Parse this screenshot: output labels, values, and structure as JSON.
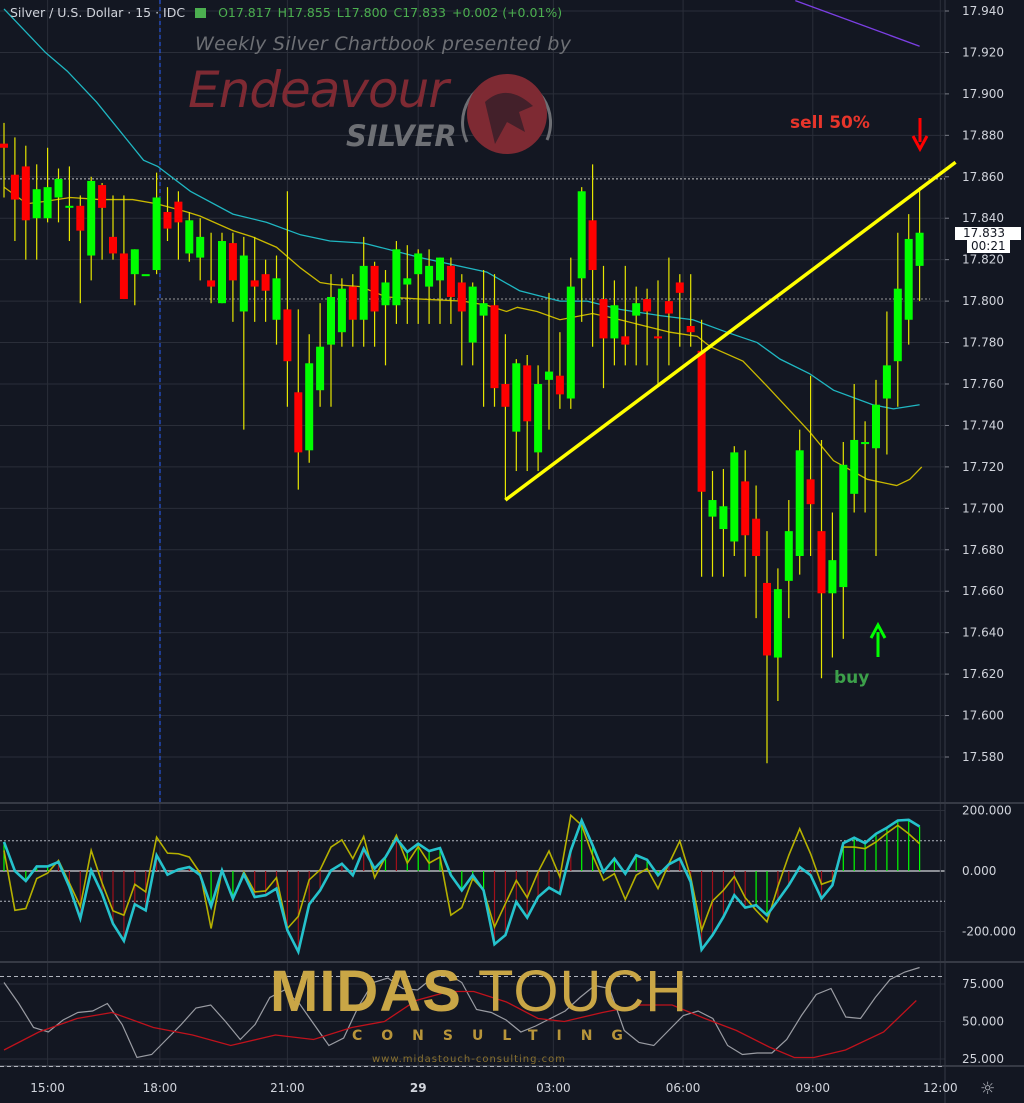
{
  "legend": {
    "symbol": "Silver / U.S. Dollar · 15 · IDC",
    "open": "O17.817",
    "high": "H17.855",
    "low": "L17.800",
    "close": "C17.833",
    "change": "+0.002 (+0.01%)"
  },
  "watermarks": {
    "chartbook": "Weekly Silver Chartbook presented by",
    "brand": "Endeavour",
    "brand_sub": "SILVER",
    "midas_a": "MIDAS",
    "midas_b": "TOUCH",
    "consulting": "CONSULTING",
    "url": "www.midastouch-consulting.com"
  },
  "annotations": {
    "sell": "sell 50%",
    "buy": "buy",
    "sell_color": "#e8352b",
    "buy_color": "#3ca04a"
  },
  "price_label": "17.833",
  "countdown": "00:21",
  "icons": {
    "settings": "gear-icon",
    "flag": "flag-icon"
  },
  "colors": {
    "background": "#131722",
    "up": "#00ff00",
    "down": "#ff0000",
    "wick": "#e6e600",
    "ma_fast": "#c9b800",
    "ma_slow": "#1fb7c2",
    "ma_long": "#7b3fe4",
    "trendline": "#ffff00",
    "osc_main": "#25c2cc",
    "osc_signal": "#b5b000",
    "stoch_k": "#9a9ca3",
    "stoch_d": "#c0121c"
  },
  "chart_data": [
    {
      "type": "candlestick",
      "title": "Silver / U.S. Dollar · 15 · IDC",
      "interval": "15",
      "x_tick_labels": [
        "15:00",
        "18:00",
        "21:00",
        "29",
        "03:00",
        "06:00",
        "09:00",
        "12:00"
      ],
      "y_ticks": [
        "17.940",
        "17.920",
        "17.900",
        "17.880",
        "17.860",
        "17.840",
        "17.820",
        "17.800",
        "17.780",
        "17.760",
        "17.740",
        "17.720",
        "17.700",
        "17.680",
        "17.660",
        "17.640",
        "17.620",
        "17.600",
        "17.580"
      ],
      "ylim": [
        17.572,
        17.945
      ],
      "grid": true,
      "candles_ohlc": [
        [
          17.876,
          17.886,
          17.85,
          17.874
        ],
        [
          17.861,
          17.879,
          17.829,
          17.849
        ],
        [
          17.865,
          17.875,
          17.82,
          17.839
        ],
        [
          17.84,
          17.866,
          17.82,
          17.854
        ],
        [
          17.84,
          17.874,
          17.838,
          17.855
        ],
        [
          17.85,
          17.864,
          17.838,
          17.859
        ],
        [
          17.846,
          17.865,
          17.829,
          17.846
        ],
        [
          17.846,
          17.851,
          17.799,
          17.834
        ],
        [
          17.822,
          17.86,
          17.81,
          17.858
        ],
        [
          17.856,
          17.857,
          17.82,
          17.845
        ],
        [
          17.831,
          17.851,
          17.82,
          17.823
        ],
        [
          17.823,
          17.851,
          17.801,
          17.801
        ],
        [
          17.813,
          17.825,
          17.798,
          17.825
        ],
        [
          17.813,
          17.813,
          17.813,
          17.813
        ],
        [
          17.815,
          17.862,
          17.813,
          17.85
        ],
        [
          17.843,
          17.855,
          17.829,
          17.835
        ],
        [
          17.848,
          17.853,
          17.82,
          17.838
        ],
        [
          17.823,
          17.843,
          17.819,
          17.839
        ],
        [
          17.821,
          17.84,
          17.81,
          17.831
        ],
        [
          17.81,
          17.833,
          17.799,
          17.807
        ],
        [
          17.799,
          17.833,
          17.799,
          17.829
        ],
        [
          17.828,
          17.833,
          17.79,
          17.81
        ],
        [
          17.795,
          17.831,
          17.738,
          17.822
        ],
        [
          17.81,
          17.831,
          17.79,
          17.807
        ],
        [
          17.813,
          17.82,
          17.79,
          17.805
        ],
        [
          17.791,
          17.822,
          17.779,
          17.811
        ],
        [
          17.796,
          17.853,
          17.749,
          17.771
        ],
        [
          17.756,
          17.796,
          17.709,
          17.727
        ],
        [
          17.728,
          17.784,
          17.722,
          17.77
        ],
        [
          17.757,
          17.799,
          17.749,
          17.778
        ],
        [
          17.779,
          17.813,
          17.749,
          17.802
        ],
        [
          17.785,
          17.811,
          17.778,
          17.806
        ],
        [
          17.807,
          17.813,
          17.778,
          17.791
        ],
        [
          17.791,
          17.831,
          17.778,
          17.817
        ],
        [
          17.817,
          17.819,
          17.778,
          17.795
        ],
        [
          17.798,
          17.815,
          17.769,
          17.809
        ],
        [
          17.798,
          17.829,
          17.789,
          17.825
        ],
        [
          17.808,
          17.827,
          17.789,
          17.811
        ],
        [
          17.813,
          17.825,
          17.789,
          17.823
        ],
        [
          17.807,
          17.825,
          17.789,
          17.817
        ],
        [
          17.81,
          17.821,
          17.789,
          17.821
        ],
        [
          17.817,
          17.821,
          17.789,
          17.802
        ],
        [
          17.809,
          17.813,
          17.769,
          17.795
        ],
        [
          17.78,
          17.809,
          17.769,
          17.807
        ],
        [
          17.793,
          17.815,
          17.749,
          17.799
        ],
        [
          17.798,
          17.813,
          17.749,
          17.758
        ],
        [
          17.76,
          17.784,
          17.704,
          17.749
        ],
        [
          17.737,
          17.772,
          17.718,
          17.77
        ],
        [
          17.769,
          17.774,
          17.718,
          17.742
        ],
        [
          17.727,
          17.769,
          17.718,
          17.76
        ],
        [
          17.762,
          17.804,
          17.738,
          17.766
        ],
        [
          17.764,
          17.785,
          17.748,
          17.755
        ],
        [
          17.753,
          17.821,
          17.748,
          17.807
        ],
        [
          17.811,
          17.855,
          17.79,
          17.853
        ],
        [
          17.839,
          17.866,
          17.778,
          17.815
        ],
        [
          17.801,
          17.817,
          17.758,
          17.782
        ],
        [
          17.782,
          17.81,
          17.769,
          17.798
        ],
        [
          17.783,
          17.817,
          17.769,
          17.779
        ],
        [
          17.793,
          17.807,
          17.769,
          17.799
        ],
        [
          17.801,
          17.806,
          17.769,
          17.795
        ],
        [
          17.783,
          17.81,
          17.76,
          17.782
        ],
        [
          17.8,
          17.821,
          17.769,
          17.794
        ],
        [
          17.809,
          17.813,
          17.778,
          17.804
        ],
        [
          17.788,
          17.813,
          17.778,
          17.785
        ],
        [
          17.776,
          17.791,
          17.667,
          17.708
        ],
        [
          17.696,
          17.718,
          17.667,
          17.704
        ],
        [
          17.69,
          17.719,
          17.667,
          17.701
        ],
        [
          17.684,
          17.73,
          17.677,
          17.727
        ],
        [
          17.713,
          17.728,
          17.667,
          17.687
        ],
        [
          17.695,
          17.711,
          17.647,
          17.677
        ],
        [
          17.664,
          17.689,
          17.577,
          17.629
        ],
        [
          17.628,
          17.671,
          17.607,
          17.661
        ],
        [
          17.665,
          17.704,
          17.647,
          17.689
        ],
        [
          17.677,
          17.738,
          17.668,
          17.728
        ],
        [
          17.714,
          17.764,
          17.677,
          17.702
        ],
        [
          17.689,
          17.733,
          17.618,
          17.659
        ],
        [
          17.659,
          17.698,
          17.628,
          17.675
        ],
        [
          17.662,
          17.732,
          17.637,
          17.721
        ],
        [
          17.707,
          17.76,
          17.698,
          17.733
        ],
        [
          17.731,
          17.742,
          17.698,
          17.732
        ],
        [
          17.729,
          17.762,
          17.677,
          17.75
        ],
        [
          17.753,
          17.795,
          17.726,
          17.769
        ],
        [
          17.771,
          17.833,
          17.749,
          17.806
        ],
        [
          17.791,
          17.842,
          17.779,
          17.83
        ],
        [
          17.817,
          17.855,
          17.8,
          17.833
        ]
      ],
      "ma_slow": [
        [
          0,
          17.941
        ],
        [
          3.8,
          17.92
        ],
        [
          5.8,
          17.911
        ],
        [
          8.5,
          17.896
        ],
        [
          12.8,
          17.868
        ],
        [
          14.1,
          17.865
        ],
        [
          17.1,
          17.853
        ],
        [
          21,
          17.842
        ],
        [
          24.1,
          17.838
        ],
        [
          27.2,
          17.832
        ],
        [
          29.9,
          17.829
        ],
        [
          33,
          17.828
        ],
        [
          38.2,
          17.821
        ],
        [
          44.3,
          17.814
        ],
        [
          47.3,
          17.805
        ],
        [
          51,
          17.8
        ],
        [
          53.5,
          17.8
        ],
        [
          56.5,
          17.796
        ],
        [
          60.2,
          17.793
        ],
        [
          63.2,
          17.791
        ],
        [
          66.3,
          17.785
        ],
        [
          69.1,
          17.78
        ],
        [
          71.2,
          17.772
        ],
        [
          73.9,
          17.765
        ],
        [
          76.1,
          17.757
        ],
        [
          79.7,
          17.75
        ],
        [
          81.6,
          17.748
        ],
        [
          84,
          17.75
        ]
      ],
      "ma_fast": [
        [
          0,
          17.855
        ],
        [
          2.1,
          17.847
        ],
        [
          3.6,
          17.848
        ],
        [
          6.1,
          17.85
        ],
        [
          8.8,
          17.849
        ],
        [
          11.8,
          17.849
        ],
        [
          14,
          17.847
        ],
        [
          16.8,
          17.843
        ],
        [
          18,
          17.841
        ],
        [
          21,
          17.834
        ],
        [
          22.8,
          17.831
        ],
        [
          25,
          17.826
        ],
        [
          27.2,
          17.816
        ],
        [
          29,
          17.809
        ],
        [
          30.2,
          17.808
        ],
        [
          32.7,
          17.807
        ],
        [
          35.1,
          17.802
        ],
        [
          38.2,
          17.801
        ],
        [
          42.1,
          17.8
        ],
        [
          44.3,
          17.798
        ],
        [
          46.1,
          17.795
        ],
        [
          47.1,
          17.797
        ],
        [
          48.9,
          17.795
        ],
        [
          51,
          17.791
        ],
        [
          54,
          17.794
        ],
        [
          56.5,
          17.791
        ],
        [
          61.1,
          17.785
        ],
        [
          63.6,
          17.783
        ],
        [
          64.8,
          17.778
        ],
        [
          67.8,
          17.771
        ],
        [
          70,
          17.759
        ],
        [
          73.9,
          17.737
        ],
        [
          76.1,
          17.723
        ],
        [
          79.2,
          17.714
        ],
        [
          81.9,
          17.711
        ],
        [
          83.1,
          17.714
        ],
        [
          84.2,
          17.72
        ]
      ],
      "ma_long": [
        [
          72.6,
          17.945
        ],
        [
          84,
          17.923
        ]
      ],
      "trendline": [
        [
          46,
          17.704
        ],
        [
          87.3,
          17.867
        ]
      ],
      "horizontal_levels": [
        17.859,
        17.801
      ]
    },
    {
      "type": "line",
      "panel": "oscillator",
      "y_ticks": [
        "200.000",
        "0.000",
        "-200.000"
      ],
      "levels": [
        100,
        -100
      ],
      "series_main": [
        96,
        0,
        -33,
        15,
        15,
        30,
        -53,
        -157,
        2,
        -75,
        -174,
        -231,
        -110,
        -130,
        52,
        -12,
        5,
        13,
        -14,
        -117,
        2,
        -91,
        -11,
        -86,
        -80,
        -58,
        -196,
        -267,
        -110,
        -64,
        2,
        24,
        -14,
        74,
        8,
        46,
        107,
        63,
        90,
        66,
        76,
        -14,
        -64,
        -14,
        -64,
        -242,
        -212,
        -102,
        -154,
        -86,
        -55,
        -75,
        68,
        167,
        85,
        -3,
        41,
        -9,
        52,
        37,
        -14,
        22,
        41,
        -36,
        -260,
        -212,
        -152,
        -80,
        -121,
        -113,
        -146,
        -97,
        -47,
        13,
        -14,
        -91,
        -47,
        92,
        110,
        92,
        123,
        143,
        167,
        169,
        147
      ],
      "series_signal": [
        68,
        -130,
        -124,
        -25,
        -7,
        35,
        -40,
        -117,
        68,
        -40,
        -132,
        -146,
        -44,
        -69,
        112,
        59,
        57,
        46,
        -7,
        -190,
        2,
        -95,
        -3,
        -69,
        -66,
        -22,
        -190,
        -150,
        -29,
        4,
        79,
        103,
        41,
        114,
        -22,
        46,
        118,
        26,
        81,
        26,
        46,
        -146,
        -121,
        -25,
        -64,
        -185,
        -108,
        -31,
        -88,
        -3,
        66,
        -20,
        184,
        151,
        52,
        -31,
        -9,
        -94,
        -14,
        8,
        -58,
        24,
        99,
        -20,
        -196,
        -99,
        -64,
        -18,
        -88,
        -130,
        -168,
        -51,
        52,
        140,
        57,
        -44,
        -31,
        79,
        79,
        74,
        96,
        125,
        151,
        123,
        90
      ]
    },
    {
      "type": "line",
      "panel": "stochastic",
      "y_ticks": [
        "75.000",
        "50.000",
        "25.000"
      ],
      "levels": [
        80,
        20
      ],
      "series_k": [
        76,
        62,
        46,
        43,
        51,
        56,
        57,
        62,
        48,
        26,
        28,
        38,
        48,
        59,
        61,
        50,
        38,
        48,
        66,
        71,
        62,
        48,
        34,
        39,
        60,
        76,
        79,
        72,
        71,
        79,
        82,
        76,
        58,
        56,
        51,
        43,
        47,
        52,
        57,
        66,
        74,
        72,
        44,
        36,
        34,
        44,
        54,
        57,
        52,
        34,
        28,
        29,
        29,
        38,
        54,
        68,
        72,
        53,
        52,
        66,
        78,
        83,
        86
      ],
      "series_d": [
        [
          0,
          31
        ],
        [
          3.2,
          43
        ],
        [
          6.7,
          52
        ],
        [
          9.9,
          56
        ],
        [
          13.7,
          46
        ],
        [
          17.3,
          41
        ],
        [
          20.8,
          34
        ],
        [
          24.9,
          41
        ],
        [
          28.4,
          38
        ],
        [
          31.9,
          46
        ],
        [
          34.9,
          50
        ],
        [
          37.8,
          64
        ],
        [
          40.8,
          70
        ],
        [
          43.1,
          70
        ],
        [
          46.1,
          63
        ],
        [
          49,
          52
        ],
        [
          51.4,
          50
        ],
        [
          54.9,
          56
        ],
        [
          58.4,
          61
        ],
        [
          61.3,
          61
        ],
        [
          64.3,
          52
        ],
        [
          67.2,
          44
        ],
        [
          70.2,
          33
        ],
        [
          72.5,
          26
        ],
        [
          74.3,
          26
        ],
        [
          77.2,
          31
        ],
        [
          80.7,
          43
        ],
        [
          83.7,
          64
        ]
      ]
    }
  ]
}
